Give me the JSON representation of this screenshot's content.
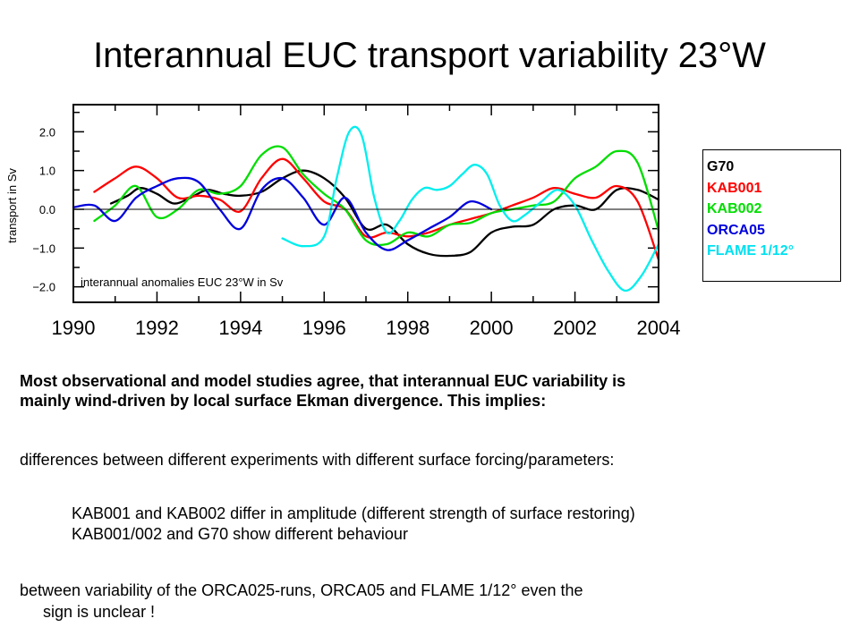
{
  "title": "Interannual EUC transport variability 23°W",
  "chart_data": {
    "type": "line",
    "ylabel": "transport in Sv",
    "annotation": "interannual anomalies EUC 23°W in Sv",
    "xlim": [
      1990,
      2004
    ],
    "ylim": [
      -2.4,
      2.7
    ],
    "x_ticks": [
      "1990",
      "1992",
      "1994",
      "1996",
      "1998",
      "2000",
      "2002",
      "2004"
    ],
    "y_ticks": [
      "2.0",
      "1.0",
      "0.0",
      "−1.0",
      "−2.0"
    ],
    "zero_line": true,
    "legend_position": "right",
    "series": [
      {
        "name": "G70",
        "color": "#000000",
        "x": [
          1990.9,
          1991.3,
          1991.6,
          1992.0,
          1992.4,
          1992.8,
          1993.2,
          1993.6,
          1994.0,
          1994.5,
          1995.0,
          1995.5,
          1996.0,
          1996.5,
          1997.0,
          1997.5,
          1998.0,
          1998.5,
          1999.0,
          1999.5,
          2000.0,
          2000.5,
          2001.0,
          2001.5,
          2002.0,
          2002.5,
          2003.0,
          2003.5,
          2004.0
        ],
        "y": [
          0.15,
          0.35,
          0.55,
          0.4,
          0.15,
          0.3,
          0.5,
          0.4,
          0.35,
          0.45,
          0.8,
          1.0,
          0.8,
          0.3,
          -0.5,
          -0.4,
          -0.9,
          -1.15,
          -1.2,
          -1.1,
          -0.6,
          -0.45,
          -0.4,
          0.0,
          0.1,
          0.0,
          0.5,
          0.5,
          0.25
        ]
      },
      {
        "name": "KAB001",
        "color": "#ff0000",
        "x": [
          1990.5,
          1991.0,
          1991.5,
          1992.0,
          1992.5,
          1993.0,
          1993.5,
          1994.0,
          1994.5,
          1995.0,
          1995.5,
          1996.0,
          1996.5,
          1997.0,
          1997.5,
          1998.0,
          1998.5,
          1999.0,
          1999.5,
          2000.0,
          2000.5,
          2001.0,
          2001.5,
          2002.0,
          2002.5,
          2003.0,
          2003.5,
          2004.0
        ],
        "y": [
          0.45,
          0.8,
          1.1,
          0.8,
          0.3,
          0.35,
          0.25,
          -0.05,
          0.8,
          1.3,
          0.8,
          0.2,
          0.0,
          -0.7,
          -0.6,
          -0.7,
          -0.6,
          -0.4,
          -0.25,
          -0.1,
          0.1,
          0.3,
          0.55,
          0.4,
          0.3,
          0.6,
          0.2,
          -1.3
        ]
      },
      {
        "name": "KAB002",
        "color": "#00dd00",
        "x": [
          1990.5,
          1991.0,
          1991.5,
          1992.0,
          1992.5,
          1993.0,
          1993.5,
          1994.0,
          1994.5,
          1995.0,
          1995.5,
          1996.0,
          1996.5,
          1997.0,
          1997.5,
          1998.0,
          1998.5,
          1999.0,
          1999.5,
          2000.0,
          2000.5,
          2001.0,
          2001.5,
          2002.0,
          2002.5,
          2003.0,
          2003.5,
          2004.0
        ],
        "y": [
          -0.3,
          0.1,
          0.6,
          -0.2,
          0.0,
          0.5,
          0.4,
          0.6,
          1.4,
          1.6,
          0.9,
          0.4,
          0.0,
          -0.8,
          -0.9,
          -0.6,
          -0.7,
          -0.4,
          -0.35,
          -0.1,
          0.0,
          0.1,
          0.2,
          0.8,
          1.1,
          1.5,
          1.2,
          -0.55
        ]
      },
      {
        "name": "ORCA05",
        "color": "#0000dd",
        "x": [
          1990.0,
          1990.5,
          1991.0,
          1991.5,
          1992.0,
          1992.5,
          1993.0,
          1993.5,
          1994.0,
          1994.5,
          1995.0,
          1995.5,
          1996.0,
          1996.5,
          1997.0,
          1997.5,
          1998.0,
          1998.5,
          1999.0,
          1999.5,
          2000.0
        ],
        "y": [
          0.05,
          0.1,
          -0.3,
          0.3,
          0.6,
          0.8,
          0.7,
          0.0,
          -0.5,
          0.5,
          0.8,
          0.3,
          -0.4,
          0.3,
          -0.6,
          -1.05,
          -0.8,
          -0.5,
          -0.2,
          0.2,
          0.0
        ]
      },
      {
        "name": "FLAME 1/12°",
        "color": "#00eeee",
        "x": [
          1995.0,
          1995.5,
          1996.0,
          1996.3,
          1996.6,
          1996.9,
          1997.2,
          1997.5,
          1997.8,
          1998.1,
          1998.4,
          1998.7,
          1999.0,
          1999.3,
          1999.6,
          1999.9,
          2000.2,
          2000.5,
          2000.8,
          2001.2,
          2001.6,
          2002.0,
          2002.4,
          2002.8,
          2003.2,
          2003.6,
          2004.0
        ],
        "y": [
          -0.75,
          -0.95,
          -0.7,
          0.8,
          2.0,
          1.9,
          0.3,
          -0.6,
          -0.3,
          0.25,
          0.55,
          0.5,
          0.6,
          0.9,
          1.15,
          0.9,
          0.1,
          -0.3,
          -0.15,
          0.2,
          0.5,
          0.1,
          -0.8,
          -1.6,
          -2.1,
          -1.7,
          -0.9
        ]
      }
    ]
  },
  "text": {
    "intro_line1": "Most observational and model studies agree, that interannual EUC variability is",
    "intro_line2": "mainly wind-driven by local surface Ekman divergence. This implies:",
    "arrow": "",
    "b1": "differences between different experiments with different surface forcing/parameters:",
    "b1a": "KAB001 and KAB002 differ in amplitude (different strength of surface restoring)",
    "b1b": "KAB001/002 and G70 show different behaviour",
    "b2_line1": "between variability of the ORCA025-runs, ORCA05 and FLAME 1/12° even the",
    "b2_line2": "sign is unclear !"
  }
}
